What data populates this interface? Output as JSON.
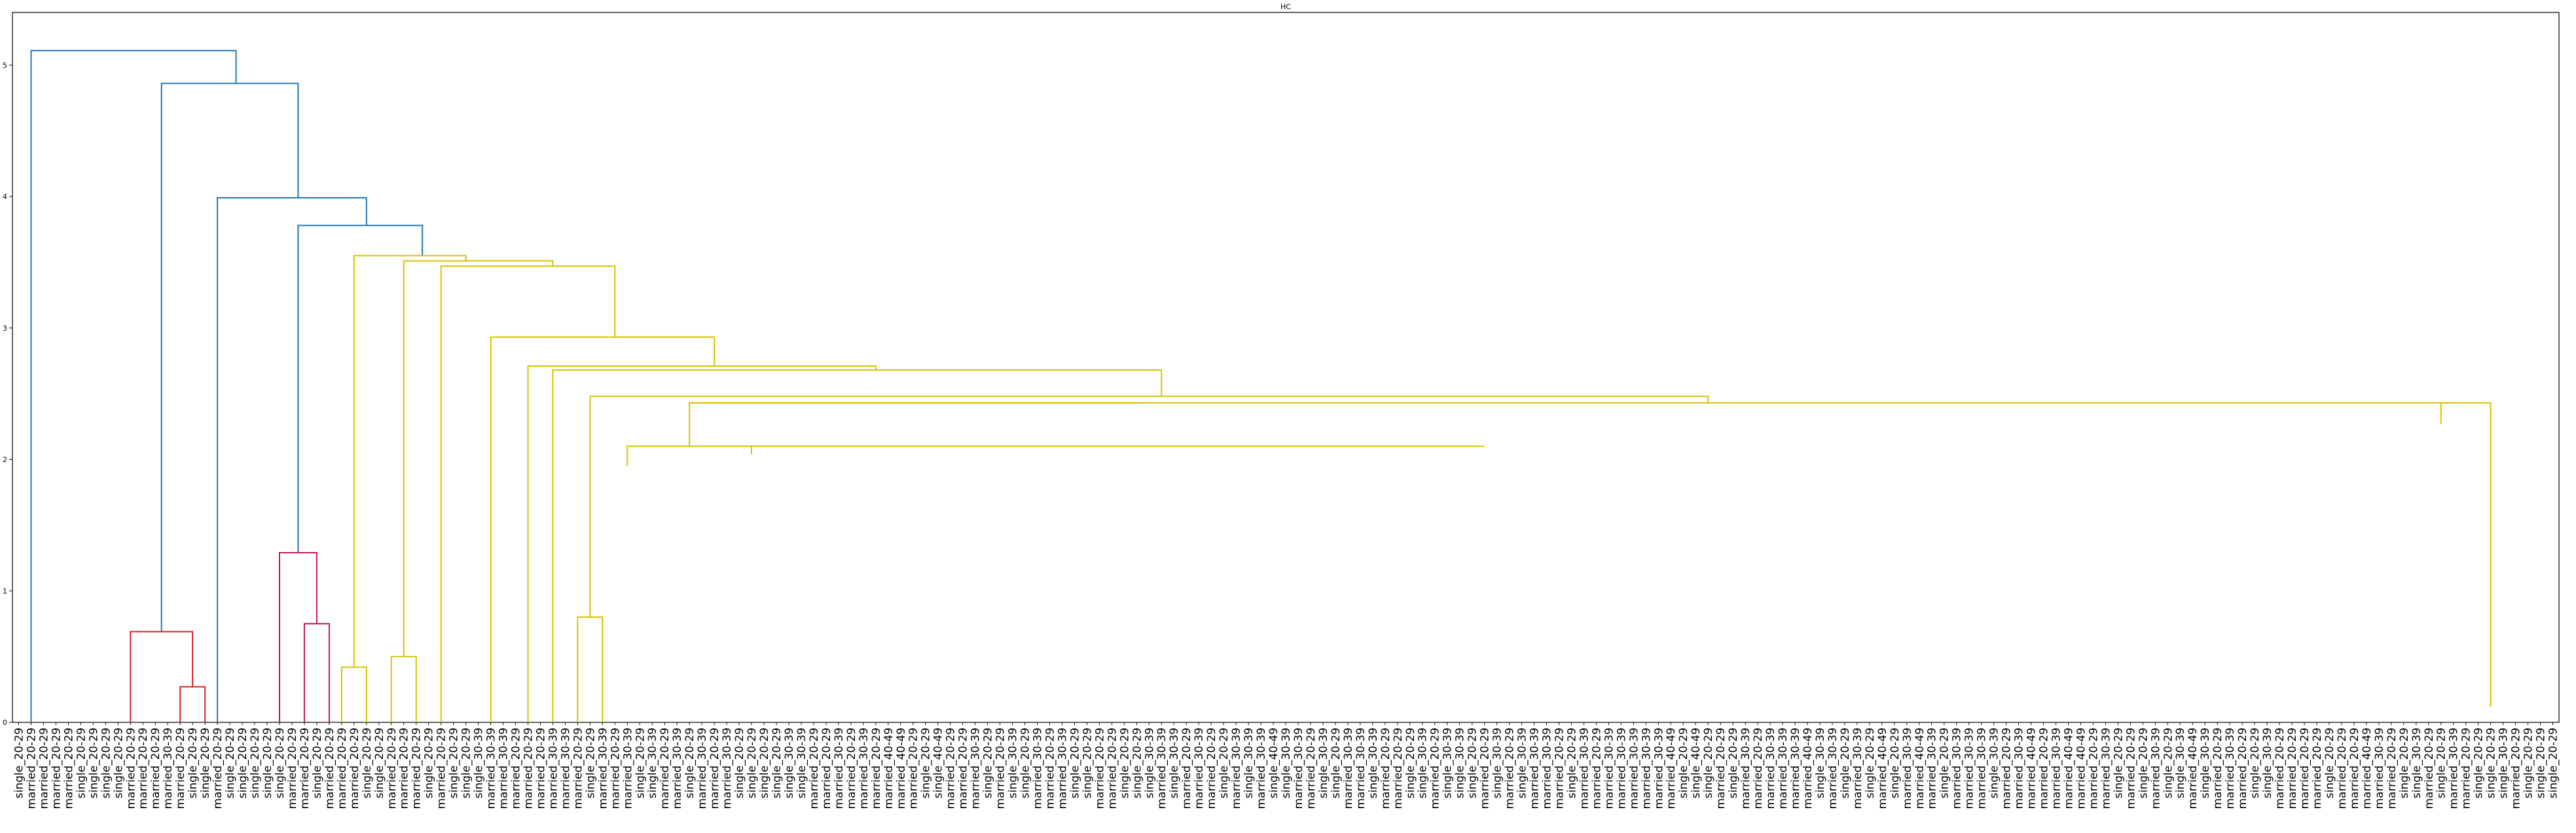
{
  "chart_data": {
    "type": "dendrogram",
    "title": "HC",
    "xlabel": "",
    "ylabel": "",
    "ylim": [
      0,
      5.4
    ],
    "yticks": [
      "0",
      "1",
      "2",
      "3",
      "4",
      "5"
    ],
    "colors": {
      "root": "#1f77b4",
      "cluster_red": "#d62728",
      "cluster_magenta": "#c2185b",
      "cluster_yellow": "#d4c400"
    },
    "leaves": [
      "single_20-29",
      "married_20-29",
      "married_20-29",
      "married_20-29",
      "married_20-29",
      "single_20-29",
      "single_20-29",
      "single_20-29",
      "single_20-29",
      "married_20-29",
      "married_20-29",
      "married_20-29",
      "married_30-39",
      "married_20-29",
      "single_20-29",
      "single_20-29",
      "married_20-29",
      "single_20-29",
      "single_20-29",
      "single_20-29",
      "single_20-29",
      "single_20-29",
      "married_20-29",
      "married_20-29",
      "single_20-29",
      "married_20-29",
      "married_20-29",
      "married_20-29",
      "single_20-29",
      "single_20-29",
      "married_20-29",
      "married_20-29",
      "married_20-29",
      "single_20-29",
      "married_20-29",
      "single_20-29",
      "single_20-29",
      "single_30-39",
      "married_30-39",
      "married_30-39",
      "married_20-29",
      "married_20-29",
      "married_20-29",
      "married_30-39",
      "married_30-39",
      "married_20-29",
      "single_20-29",
      "married_30-39",
      "married_20-29",
      "married_30-39",
      "single_20-29",
      "single_30-39",
      "married_20-29",
      "married_30-39",
      "single_20-29",
      "married_30-39",
      "married_20-29",
      "married_30-39",
      "single_20-29",
      "single_20-29",
      "single_20-29",
      "single_20-29",
      "single_30-39",
      "single_30-39",
      "married_20-29",
      "married_20-29",
      "married_30-39",
      "married_20-29",
      "married_30-39",
      "married_20-29",
      "married_40-49",
      "married_40-49",
      "married_20-29",
      "single_20-29",
      "single_40-49",
      "married_20-29",
      "married_20-29",
      "married_30-39",
      "single_20-29",
      "married_20-29",
      "single_30-39",
      "single_20-29",
      "married_30-39",
      "married_20-29",
      "married_30-39",
      "single_20-29",
      "single_20-29",
      "married_20-29",
      "married_20-29",
      "single_20-29",
      "single_20-29",
      "single_30-39",
      "married_30-39",
      "single_30-39",
      "married_20-29",
      "married_30-39",
      "married_20-29",
      "single_20-29",
      "married_30-39",
      "single_30-39",
      "married_30-39",
      "single_40-49",
      "single_30-39",
      "married_30-39",
      "married_20-29",
      "single_30-39",
      "single_20-29",
      "married_30-39",
      "married_30-39",
      "single_30-39",
      "married_20-29",
      "married_20-29",
      "single_20-29",
      "single_30-39",
      "married_20-29",
      "single_30-39",
      "single_30-39",
      "single_20-29",
      "married_20-29",
      "single_30-39",
      "married_20-29",
      "single_30-39",
      "married_30-39",
      "married_30-39",
      "married_20-29",
      "single_20-29",
      "married_30-39",
      "married_20-29",
      "married_30-39",
      "married_30-39",
      "married_30-39",
      "married_30-39",
      "married_30-39",
      "married_40-49",
      "single_20-29",
      "single_40-49",
      "single_20-29",
      "married_20-29",
      "single_20-29",
      "married_30-39",
      "married_20-29",
      "married_30-39",
      "married_30-39",
      "married_30-39",
      "married_40-49",
      "single_30-39",
      "married_30-39",
      "single_20-29",
      "married_30-39",
      "single_20-29",
      "married_40-49",
      "single_20-29",
      "married_30-39",
      "married_40-49",
      "married_30-39",
      "single_20-29",
      "married_30-39",
      "married_30-39",
      "married_30-39",
      "single_30-39",
      "married_20-29",
      "married_30-39",
      "married_40-49",
      "married_20-29",
      "married_30-39",
      "married_40-49",
      "married_40-49",
      "married_20-29",
      "married_30-39",
      "single_20-29",
      "married_20-29",
      "single_20-29",
      "married_30-39",
      "single_20-29",
      "single_30-39",
      "married_40-49",
      "single_30-39",
      "married_20-29",
      "married_30-39",
      "married_20-29",
      "single_20-29",
      "single_30-39",
      "married_20-29",
      "married_20-29",
      "married_20-29",
      "married_20-29",
      "single_20-29",
      "married_20-29",
      "married_20-29",
      "married_40-49",
      "married_30-39",
      "married_20-29",
      "single_20-29",
      "single_30-39",
      "married_20-29",
      "single_20-29",
      "married_30-39",
      "married_20-29",
      "single_20-29",
      "single_20-29",
      "single_30-39",
      "married_20-29",
      "single_20-29",
      "single_20-29",
      "single_20-29"
    ],
    "links": [
      {
        "x": [
          1,
          1,
          17.5,
          17.5
        ],
        "y": [
          0,
          5.11,
          5.11,
          4.86
        ],
        "color": "root"
      },
      {
        "x": [
          11.5,
          11.5,
          22.5,
          22.5
        ],
        "y": [
          0.69,
          4.86,
          4.86,
          3.99
        ],
        "color": "root"
      },
      {
        "x": [
          16,
          16,
          28,
          28
        ],
        "y": [
          0,
          3.99,
          3.99,
          3.78
        ],
        "color": "root"
      },
      {
        "x": [
          22.5,
          22.5,
          32.5,
          32.5
        ],
        "y": [
          1.29,
          3.78,
          3.78,
          3.55
        ],
        "color": "root"
      },
      {
        "x": [
          9,
          9,
          14,
          14
        ],
        "y": [
          0,
          0.69,
          0.69,
          0.27
        ],
        "color": "cluster_red"
      },
      {
        "x": [
          13,
          13,
          15,
          15
        ],
        "y": [
          0,
          0.27,
          0.27,
          0
        ],
        "color": "cluster_red"
      },
      {
        "x": [
          21,
          21,
          24,
          24
        ],
        "y": [
          0,
          1.29,
          1.29,
          0.75
        ],
        "color": "cluster_magenta"
      },
      {
        "x": [
          23,
          23,
          25,
          25
        ],
        "y": [
          0,
          0.75,
          0.75,
          0
        ],
        "color": "cluster_magenta"
      },
      {
        "x": [
          27,
          27,
          36,
          36
        ],
        "y": [
          0.42,
          3.55,
          3.55,
          3.51
        ],
        "color": "cluster_yellow"
      },
      {
        "x": [
          26,
          26,
          28,
          28
        ],
        "y": [
          0,
          0.42,
          0.42,
          0
        ],
        "color": "cluster_yellow"
      },
      {
        "x": [
          31,
          31,
          43,
          43
        ],
        "y": [
          0.5,
          3.51,
          3.51,
          3.47
        ],
        "color": "cluster_yellow"
      },
      {
        "x": [
          30,
          30,
          32,
          32
        ],
        "y": [
          0,
          0.5,
          0.5,
          0
        ],
        "color": "cluster_yellow"
      },
      {
        "x": [
          34,
          34,
          48,
          48
        ],
        "y": [
          0,
          3.47,
          3.47,
          2.93
        ],
        "color": "cluster_yellow"
      },
      {
        "x": [
          38,
          38,
          56,
          56
        ],
        "y": [
          0,
          2.93,
          2.93,
          2.71
        ],
        "color": "cluster_yellow"
      },
      {
        "x": [
          41,
          41,
          69,
          69
        ],
        "y": [
          0,
          2.71,
          2.71,
          2.68
        ],
        "color": "cluster_yellow"
      },
      {
        "x": [
          43,
          43,
          92,
          92
        ],
        "y": [
          0,
          2.68,
          2.68,
          2.48
        ],
        "color": "cluster_yellow"
      },
      {
        "x": [
          46,
          46,
          136,
          136
        ],
        "y": [
          0.8,
          2.48,
          2.48,
          2.43
        ],
        "color": "cluster_yellow"
      },
      {
        "x": [
          45,
          45,
          47,
          47
        ],
        "y": [
          0,
          0.8,
          0.8,
          0
        ],
        "color": "cluster_yellow"
      },
      {
        "x": [
          54,
          54,
          196,
          196
        ],
        "y": [
          2.43,
          2.43,
          2.43,
          2.43
        ],
        "color": "cluster_yellow"
      },
      {
        "x": [
          54,
          54,
          91,
          91
        ],
        "y": [
          2.1,
          2.43,
          2.43,
          2.43
        ],
        "color": "cluster_yellow"
      },
      {
        "x": [
          49,
          49,
          59,
          59
        ],
        "y": [
          1.95,
          2.1,
          2.1,
          2.1
        ],
        "color": "cluster_yellow"
      },
      {
        "x": [
          59,
          59,
          118,
          118
        ],
        "y": [
          2.04,
          2.1,
          2.1,
          2.1
        ],
        "color": "cluster_yellow"
      },
      {
        "x": [
          195,
          195,
          199,
          199
        ],
        "y": [
          2.27,
          2.43,
          2.43,
          0.12
        ],
        "color": "cluster_yellow"
      }
    ]
  }
}
